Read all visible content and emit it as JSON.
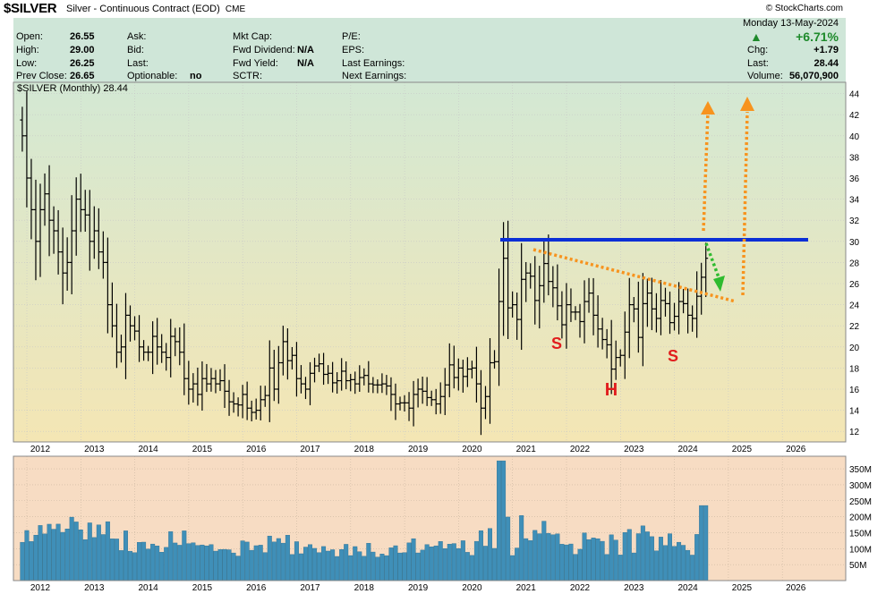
{
  "header": {
    "symbol": "$SILVER",
    "description": "Silver - Continuous Contract (EOD)",
    "exchange": "CME",
    "brand": "© StockCharts.com"
  },
  "quote": {
    "open_label": "Open:",
    "open": "26.55",
    "high_label": "High:",
    "high": "29.00",
    "low_label": "Low:",
    "low": "26.25",
    "prevclose_label": "Prev Close:",
    "prevclose": "26.65",
    "ask_label": "Ask:",
    "bid_label": "Bid:",
    "last_label": "Last:",
    "optionable_label": "Optionable:",
    "optionable": "no",
    "mktcap_label": "Mkt Cap:",
    "fwddiv_label": "Fwd Dividend:",
    "fwddiv": "N/A",
    "fwdyield_label": "Fwd Yield:",
    "fwdyield": "N/A",
    "sctr_label": "SCTR:",
    "pe_label": "P/E:",
    "eps_label": "EPS:",
    "lastearn_label": "Last Earnings:",
    "nextearn_label": "Next Earnings:",
    "date": "Monday  13-May-2024",
    "pct": "+6.71%",
    "chg_label": "Chg:",
    "chg": "+1.79",
    "last2_label": "Last:",
    "last": "28.44",
    "volume_label": "Volume:",
    "volume": "56,070,900"
  },
  "chart_data": [
    {
      "type": "ohlc",
      "legend": "$SILVER (Monthly) 28.44",
      "x_ticks": [
        "2012",
        "2013",
        "2014",
        "2015",
        "2016",
        "2017",
        "2018",
        "2019",
        "2020",
        "2021",
        "2022",
        "2023",
        "2024",
        "2025",
        "2026"
      ],
      "y_ticks": [
        "44",
        "42",
        "40",
        "38",
        "36",
        "34",
        "32",
        "30",
        "28",
        "26",
        "24",
        "22",
        "20",
        "18",
        "16",
        "14",
        "12"
      ],
      "ylim": [
        11,
        45
      ],
      "xlim": [
        "2011-08",
        "2026-08"
      ],
      "closes_by_year": {
        "2011": [
          40,
          36,
          33,
          30
        ],
        "2012": [
          33,
          34.5,
          32,
          31,
          29,
          27,
          28,
          31,
          34,
          33,
          32.5,
          30
        ],
        "2013": [
          31,
          29,
          28,
          24,
          22,
          19.5,
          20,
          23,
          22,
          21.5,
          20,
          19.5
        ],
        "2014": [
          19.5,
          21,
          20,
          19.5,
          19,
          21,
          20.5,
          19.5,
          17,
          16,
          16.5,
          15.5
        ],
        "2015": [
          17,
          16.5,
          17,
          16.5,
          16.8,
          15.8,
          14.8,
          14.6,
          14.5,
          15.5,
          14.2,
          13.8
        ],
        "2016": [
          14,
          15,
          15.4,
          18,
          16,
          18.5,
          20.5,
          18.7,
          19.2,
          17,
          16.5,
          16
        ],
        "2017": [
          17.5,
          18.2,
          18.4,
          17.4,
          17.5,
          16.6,
          16.8,
          17.7,
          16.8,
          16.9,
          16.5,
          17.1
        ],
        "2018": [
          17.3,
          16.5,
          16.4,
          16.4,
          16.5,
          16.3,
          15.5,
          14.6,
          14.7,
          14.7,
          14.2,
          15.5
        ],
        "2019": [
          16,
          15.8,
          15.2,
          15,
          14.6,
          15.3,
          16.4,
          18.3,
          17.1,
          18,
          17.2,
          17.9
        ],
        "2020": [
          18,
          16.5,
          14.2,
          15.3,
          18.5,
          18.6,
          24.3,
          28.4,
          23.7,
          24,
          22.6,
          26.4
        ],
        "2021": [
          27,
          26.7,
          24.4,
          25.8,
          27.9,
          26.2,
          25.6,
          23.9,
          22.1,
          24,
          23.3,
          23.3
        ],
        "2022": [
          22.4,
          24.3,
          25.1,
          23,
          21.7,
          20.7,
          20.2,
          17.9,
          19,
          19.2,
          21.4,
          24
        ],
        "2023": [
          23.6,
          20.9,
          24.1,
          25.1,
          23.6,
          22.7,
          24.4,
          24.1,
          22.3,
          22.9,
          24.3,
          24.1
        ],
        "2024": [
          23,
          22.7,
          24.8,
          26.6,
          28.4
        ]
      }
    },
    {
      "type": "bar",
      "title": "volume",
      "y_ticks": [
        "350M",
        "300M",
        "250M",
        "200M",
        "150M",
        "100M",
        "50M"
      ],
      "ylim": [
        0,
        390
      ],
      "x_ticks": [
        "2012",
        "2013",
        "2014",
        "2015",
        "2016",
        "2017",
        "2018",
        "2019",
        "2020",
        "2021",
        "2022",
        "2023",
        "2024",
        "2025",
        "2026"
      ]
    }
  ],
  "annotations": {
    "left_s": "S",
    "head": "H",
    "right_s": "S"
  },
  "colors": {
    "green_panel": "#cfe6d8",
    "price_bg_top": "#d3e8d4",
    "price_bg_bottom": "#f4e6b4",
    "vol_bg": "#f7dcc3",
    "volume_bar": "#3f8fb8",
    "neckline": "#0b2fd6",
    "trendline": "#f7931e",
    "green_arrow": "#2fbb2f",
    "label_red": "#e11d1d"
  }
}
